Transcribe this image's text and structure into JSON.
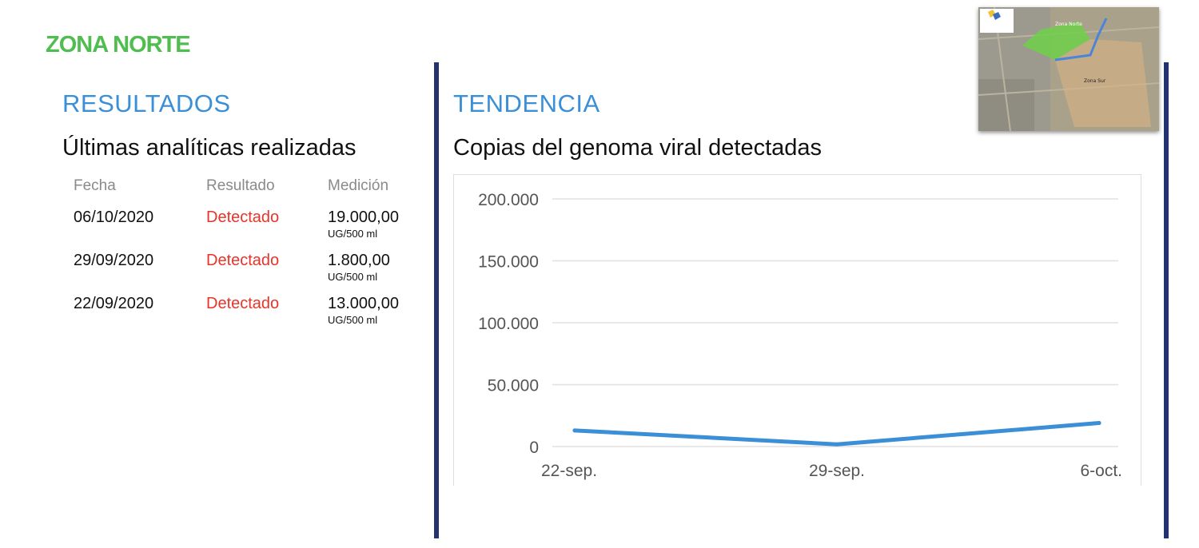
{
  "header": {
    "zone": "ZONA NORTE"
  },
  "results": {
    "title": "RESULTADOS",
    "subtitle": "Últimas analíticas realizadas",
    "columns": [
      "Fecha",
      "Resultado",
      "Medición"
    ],
    "rows": [
      {
        "date": "06/10/2020",
        "result": "Detectado",
        "value": "19.000,00",
        "unit": "UG/500 ml"
      },
      {
        "date": "29/09/2020",
        "result": "Detectado",
        "value": "1.800,00",
        "unit": "UG/500 ml"
      },
      {
        "date": "22/09/2020",
        "result": "Detectado",
        "value": "13.000,00",
        "unit": "UG/500 ml"
      }
    ]
  },
  "trend": {
    "title": "TENDENCIA",
    "subtitle": "Copias del genoma viral detectadas"
  },
  "map": {
    "labels": [
      "Zona Norte",
      "Zona Sur"
    ]
  },
  "colors": {
    "zone": "#4fbd4f",
    "section": "#3a8fd6",
    "detected": "#e8332a",
    "divider": "#243270",
    "line": "#3a8fd6"
  },
  "chart_data": {
    "type": "line",
    "title": "Copias del genoma viral detectadas",
    "categories": [
      "22-sep.",
      "29-sep.",
      "6-oct."
    ],
    "series": [
      {
        "values": [
          13000,
          1800,
          19000
        ]
      }
    ],
    "yticks": [
      "0",
      "50.000",
      "100.000",
      "150.000",
      "200.000"
    ],
    "ylim": [
      0,
      200000
    ],
    "grid": true,
    "legend": "none"
  }
}
